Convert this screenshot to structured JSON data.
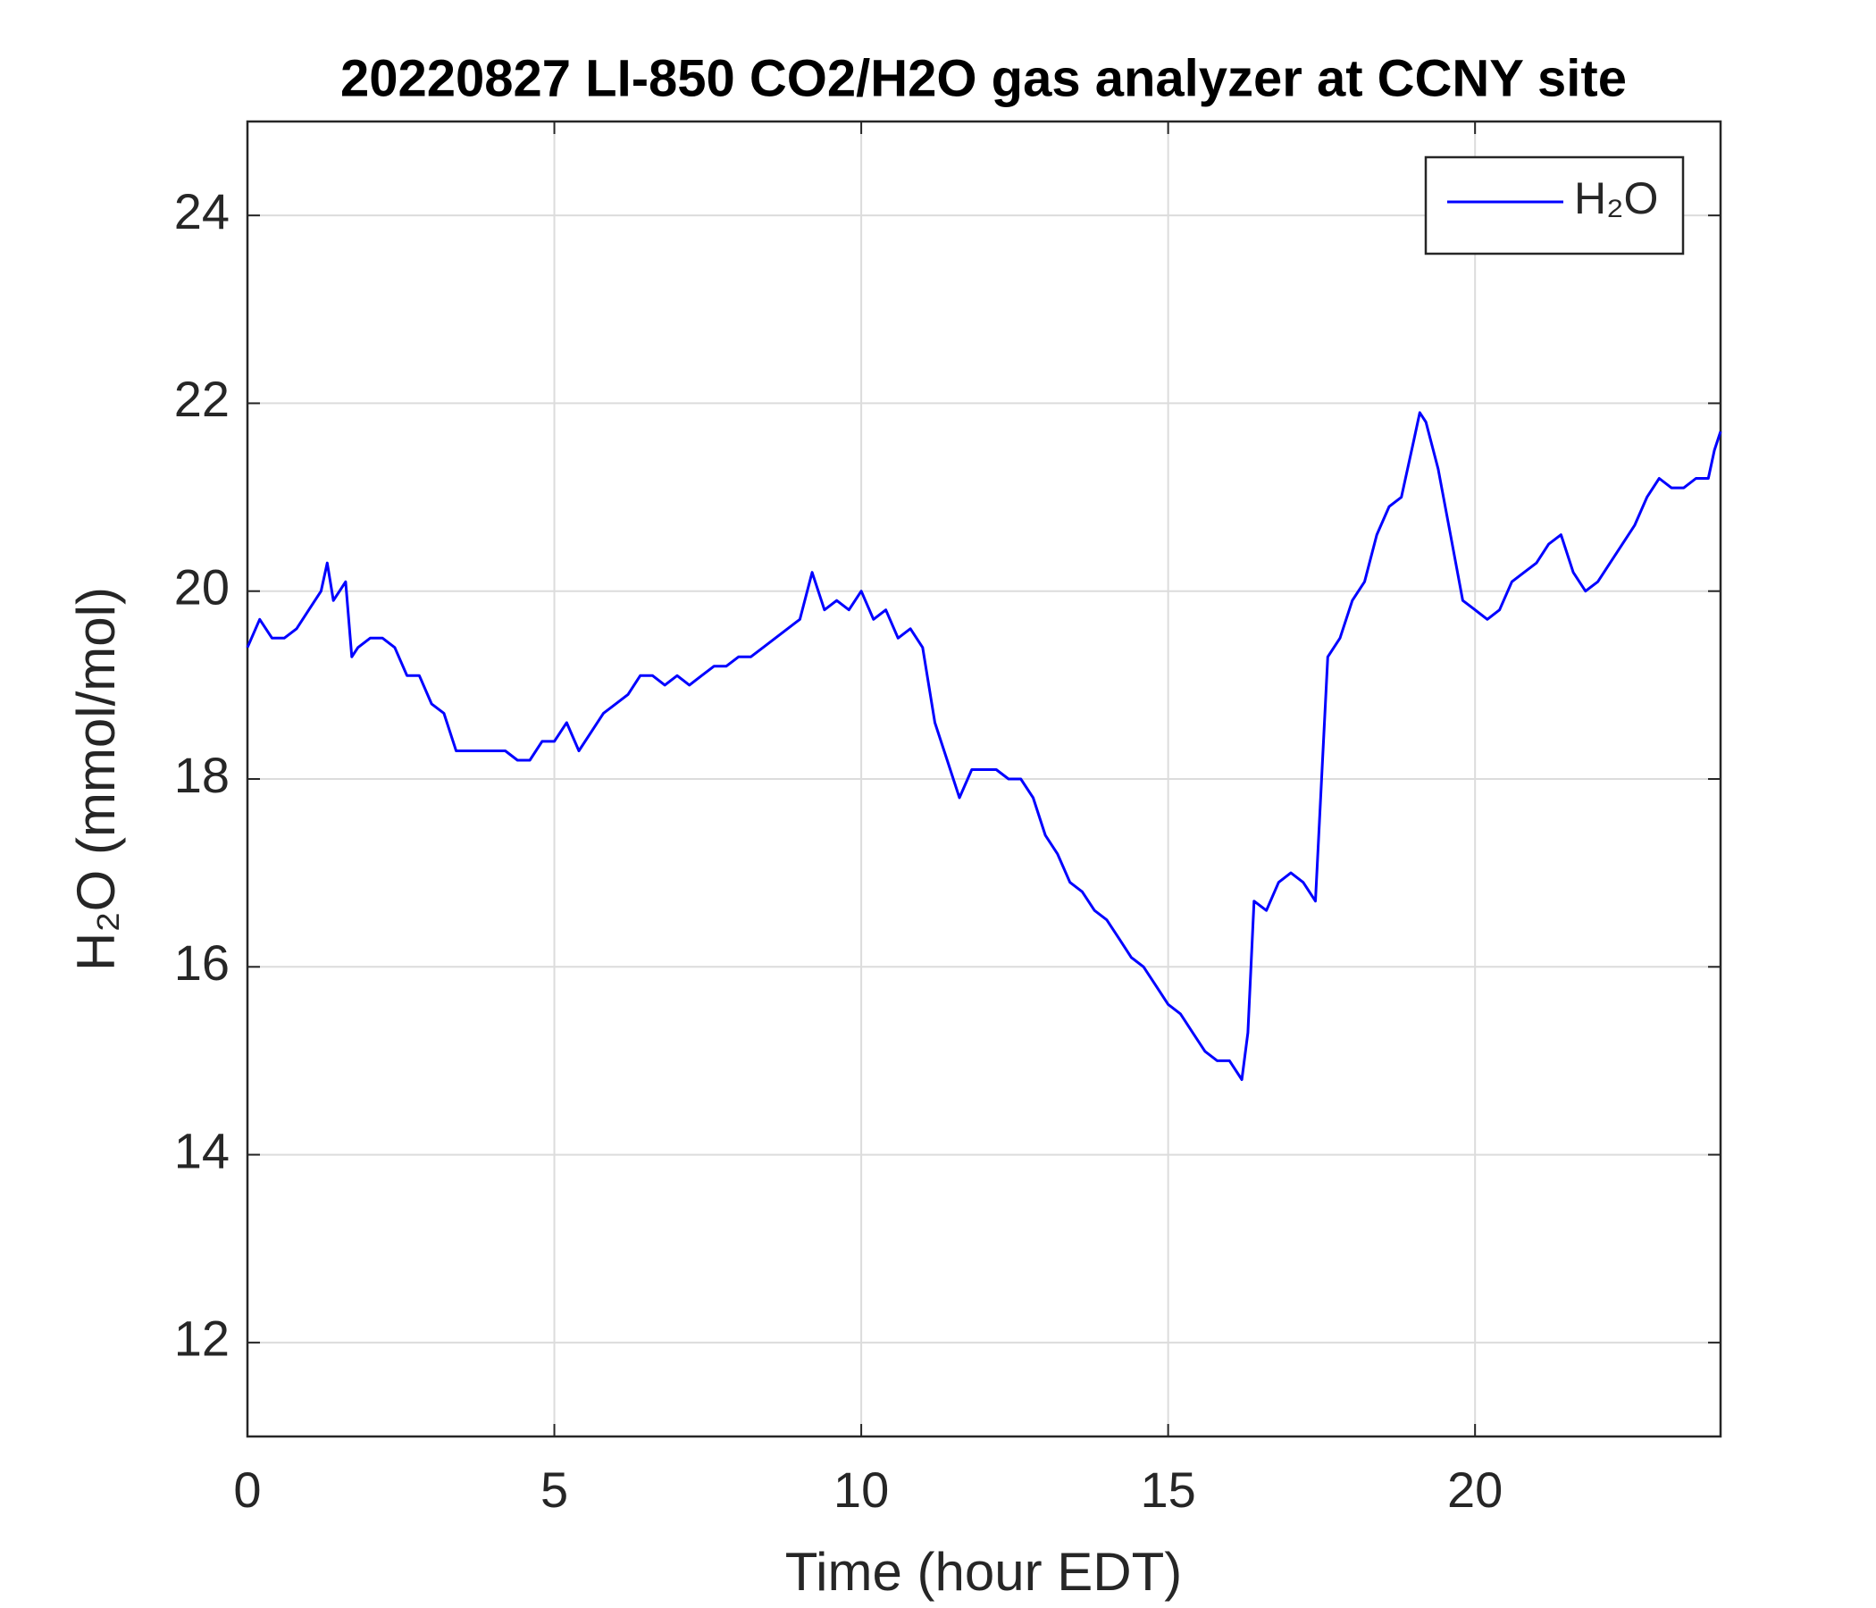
{
  "chart_data": {
    "type": "line",
    "title": "20220827 LI-850 CO2/H2O gas analyzer at CCNY site",
    "x_label": "Time (hour EDT)",
    "y_label": "H₂O (mmol/mol)",
    "xlim": [
      0,
      24
    ],
    "xticks": [
      0,
      5,
      10,
      15,
      20
    ],
    "ylim": [
      11,
      25
    ],
    "yticks": [
      12,
      14,
      16,
      18,
      20,
      22,
      24
    ],
    "grid": true,
    "legend": "top-right",
    "x": [
      0,
      0.2,
      0.4,
      0.6,
      0.8,
      1.0,
      1.2,
      1.3,
      1.4,
      1.6,
      1.7,
      1.8,
      2.0,
      2.2,
      2.4,
      2.6,
      2.8,
      3.0,
      3.2,
      3.4,
      3.6,
      3.8,
      4.0,
      4.2,
      4.4,
      4.6,
      4.8,
      5.0,
      5.2,
      5.4,
      5.6,
      5.8,
      6.0,
      6.2,
      6.4,
      6.6,
      6.8,
      7.0,
      7.2,
      7.4,
      7.6,
      7.8,
      8.0,
      8.2,
      8.4,
      8.6,
      8.8,
      9.0,
      9.2,
      9.4,
      9.6,
      9.8,
      10.0,
      10.2,
      10.4,
      10.6,
      10.8,
      11.0,
      11.2,
      11.4,
      11.6,
      11.8,
      12.0,
      12.2,
      12.4,
      12.6,
      12.8,
      13.0,
      13.2,
      13.4,
      13.6,
      13.8,
      14.0,
      14.2,
      14.4,
      14.6,
      14.8,
      15.0,
      15.2,
      15.4,
      15.6,
      15.8,
      16.0,
      16.2,
      16.3,
      16.4,
      16.6,
      16.8,
      17.0,
      17.2,
      17.4,
      17.5,
      17.6,
      17.8,
      18.0,
      18.2,
      18.4,
      18.6,
      18.8,
      19.0,
      19.1,
      19.2,
      19.4,
      19.6,
      19.8,
      20.0,
      20.2,
      20.4,
      20.6,
      20.8,
      21.0,
      21.2,
      21.4,
      21.6,
      21.8,
      22.0,
      22.2,
      22.4,
      22.6,
      22.8,
      23.0,
      23.2,
      23.4,
      23.6,
      23.8,
      23.9,
      24.0
    ],
    "series": [
      {
        "name": "H₂O",
        "color": "#0000ff",
        "values": [
          19.4,
          19.7,
          19.5,
          19.5,
          19.6,
          19.8,
          20.0,
          20.3,
          19.9,
          20.1,
          19.3,
          19.4,
          19.5,
          19.5,
          19.4,
          19.1,
          19.1,
          18.8,
          18.7,
          18.3,
          18.3,
          18.3,
          18.3,
          18.3,
          18.2,
          18.2,
          18.4,
          18.4,
          18.6,
          18.3,
          18.5,
          18.7,
          18.8,
          18.9,
          19.1,
          19.1,
          19.0,
          19.1,
          19.0,
          19.1,
          19.2,
          19.2,
          19.3,
          19.3,
          19.4,
          19.5,
          19.6,
          19.7,
          20.2,
          19.8,
          19.9,
          19.8,
          20.0,
          19.7,
          19.8,
          19.5,
          19.6,
          19.4,
          18.6,
          18.2,
          17.8,
          18.1,
          18.1,
          18.1,
          18.0,
          18.0,
          17.8,
          17.4,
          17.2,
          16.9,
          16.8,
          16.6,
          16.5,
          16.3,
          16.1,
          16.0,
          15.8,
          15.6,
          15.5,
          15.3,
          15.1,
          15.0,
          15.0,
          14.8,
          15.3,
          16.7,
          16.6,
          16.9,
          17.0,
          16.9,
          16.7,
          18.0,
          19.3,
          19.5,
          19.9,
          20.1,
          20.6,
          20.9,
          21.0,
          21.6,
          21.9,
          21.8,
          21.3,
          20.6,
          19.9,
          19.8,
          19.7,
          19.8,
          20.1,
          20.2,
          20.3,
          20.5,
          20.6,
          20.2,
          20.0,
          20.1,
          20.3,
          20.5,
          20.7,
          21.0,
          21.2,
          21.1,
          21.1,
          21.2,
          21.2,
          21.5,
          21.7
        ]
      }
    ]
  }
}
